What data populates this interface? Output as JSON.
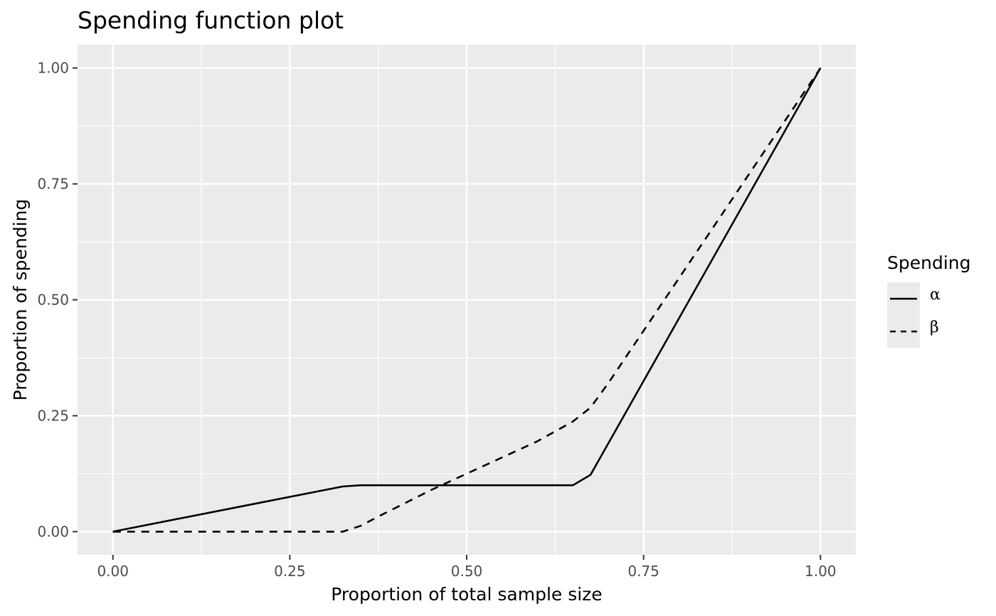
{
  "chart_data": {
    "type": "line",
    "title": "Spending function plot",
    "xlabel": "Proportion of total sample size",
    "ylabel": "Proportion of spending",
    "xlim": [
      -0.05,
      1.05
    ],
    "ylim": [
      -0.05,
      1.05
    ],
    "x_ticks": [
      0,
      0.25,
      0.5,
      0.75,
      1
    ],
    "x_tick_labels": [
      "0.00",
      "0.25",
      "0.50",
      "0.75",
      "1.00"
    ],
    "y_ticks": [
      0,
      0.25,
      0.5,
      0.75,
      1
    ],
    "y_tick_labels": [
      "0.00",
      "0.25",
      "0.50",
      "0.75",
      "1.00"
    ],
    "grid": true,
    "legend": {
      "title": "Spending",
      "position": "right"
    },
    "series": [
      {
        "name": "α",
        "line_style": "solid",
        "color": "#000000",
        "x": [
          0,
          0.325,
          0.35,
          0.65,
          0.675,
          1
        ],
        "y": [
          0,
          0.0975,
          0.1,
          0.1,
          0.1225,
          1
        ]
      },
      {
        "name": "β",
        "line_style": "dashed",
        "color": "#000000",
        "x": [
          0,
          0.325,
          0.35,
          0.375,
          0.45,
          0.5,
          0.55,
          0.6,
          0.65,
          0.675,
          0.7,
          1
        ],
        "y": [
          0,
          0,
          0.0125,
          0.0325,
          0.09,
          0.125,
          0.16,
          0.195,
          0.2375,
          0.2675,
          0.32,
          1
        ]
      }
    ]
  }
}
